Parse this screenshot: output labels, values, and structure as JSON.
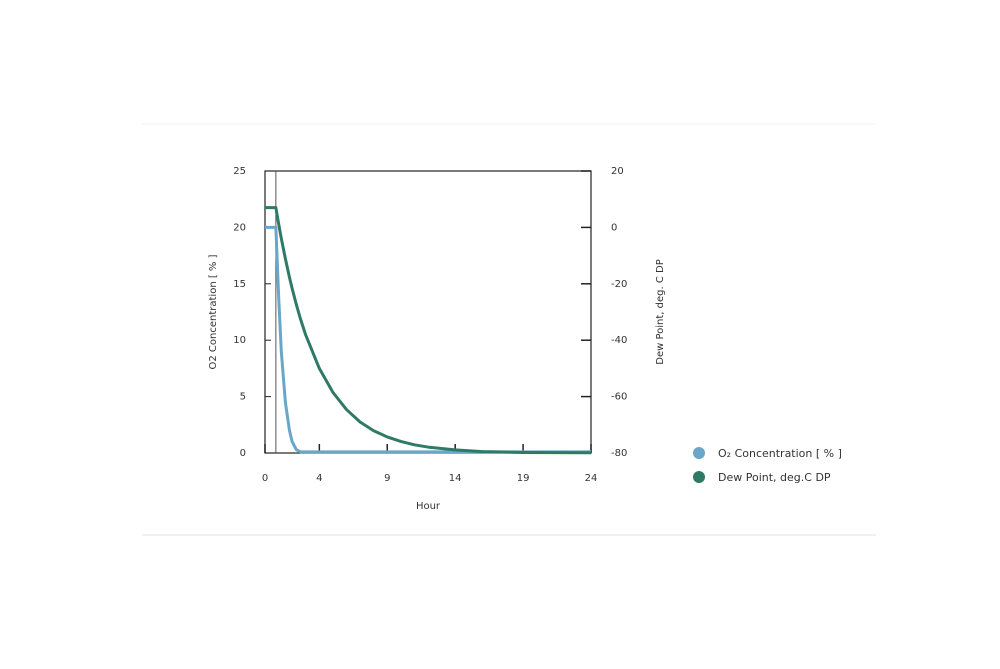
{
  "chart_data": {
    "type": "line",
    "x_label": "Hour",
    "y_label": "O2 Concentration [ % ]",
    "y2_label": "Dew Point, deg. C DP",
    "x": [
      0,
      0.5,
      0.8,
      1,
      1.2,
      1.5,
      1.8,
      2,
      2.3,
      2.6,
      3,
      4,
      5,
      6,
      7,
      8,
      9,
      10,
      11,
      12,
      14,
      16,
      19,
      24
    ],
    "series": [
      {
        "name": "O₂ Concentration [ % ]",
        "color": "#6aa6c8",
        "axis": "y",
        "values": [
          20,
          20,
          20,
          14,
          9,
          4.5,
          2,
          1,
          0.3,
          0.1,
          0.1,
          0.1,
          0.1,
          0.1,
          0.1,
          0.1,
          0.1,
          0.1,
          0.1,
          0.1,
          0.1,
          0.1,
          0.1,
          0.1
        ]
      },
      {
        "name": "Dew Point, deg.C DP",
        "color": "#2e7a66",
        "axis": "y2",
        "values": [
          7,
          7,
          7,
          1.4,
          -3.9,
          -11.1,
          -17.7,
          -21.7,
          -27.2,
          -32.3,
          -38.2,
          -50,
          -58.5,
          -64.6,
          -69,
          -72.1,
          -74.3,
          -75.9,
          -77.1,
          -77.9,
          -78.9,
          -79.5,
          -79.8,
          -79.9
        ]
      }
    ],
    "vline": 0.8,
    "xlim": [
      0,
      24
    ],
    "xticks": [
      0,
      4,
      9,
      14,
      19,
      24
    ],
    "ylim": [
      0,
      25
    ],
    "yticks": [
      0,
      5,
      10,
      15,
      20,
      25
    ],
    "y2lim": [
      -80,
      20
    ],
    "y2ticks": [
      -80,
      -60,
      -40,
      -20,
      0,
      20
    ]
  }
}
